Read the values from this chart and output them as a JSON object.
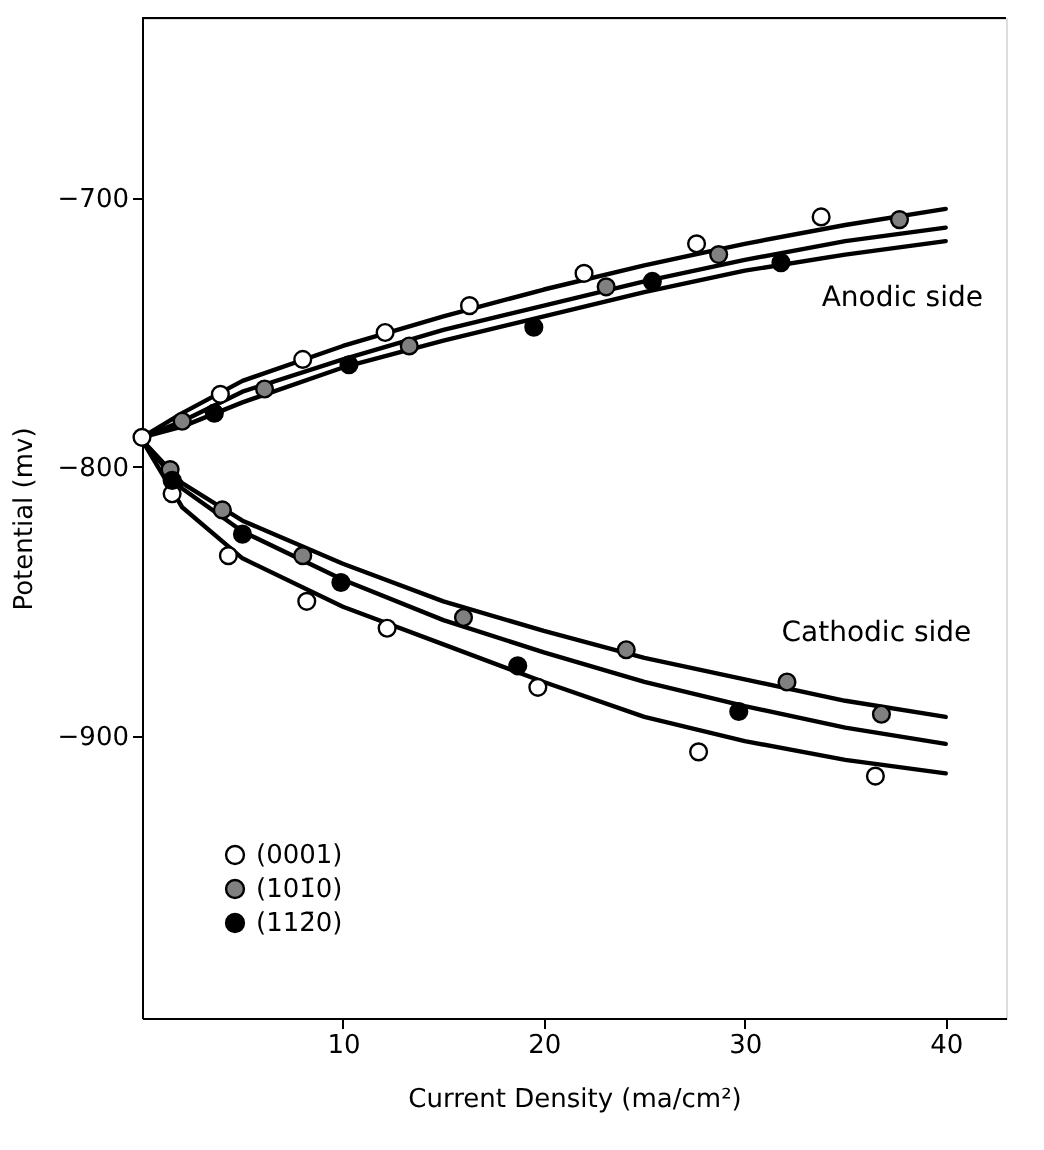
{
  "chart_data": {
    "type": "scatter",
    "xlabel": "Current Density (ma/cm²)",
    "ylabel": "Potential (mv)",
    "xlim": [
      0,
      43
    ],
    "ylim": [
      -1005,
      -633
    ],
    "xticks": [
      10,
      20,
      30,
      40
    ],
    "yticks": [
      -700,
      -800,
      -900
    ],
    "grid": false,
    "legend": "bottom left",
    "line_style": "solid",
    "annotations": [
      "Anodic side",
      "Cathodic side"
    ],
    "series": [
      {
        "name": "(0001)",
        "color": "#ffffff",
        "marker": "circle",
        "x": [
          0,
          3.9,
          8.0,
          12.1,
          16.3,
          22.0,
          27.6,
          33.8,
          1.5,
          4.3,
          8.2,
          12.2,
          19.7,
          27.7,
          36.5
        ],
        "values": [
          -789,
          -773,
          -760,
          -750,
          -740,
          -728,
          -717,
          -707,
          -810,
          -833,
          -850,
          -860,
          -882,
          -906,
          -915
        ]
      },
      {
        "name": "(101̄0)",
        "color": "#808080",
        "marker": "circle",
        "x": [
          2.0,
          6.1,
          13.3,
          23.1,
          28.7,
          37.7,
          1.4,
          4.0,
          8.0,
          16.0,
          24.1,
          32.1,
          36.8
        ],
        "values": [
          -783,
          -771,
          -755,
          -733,
          -721,
          -708,
          -801,
          -816,
          -833,
          -856,
          -868,
          -880,
          -892
        ]
      },
      {
        "name": "(112̄0)",
        "color": "#000000",
        "marker": "circle",
        "x": [
          3.6,
          10.3,
          19.5,
          25.4,
          31.8,
          1.5,
          5.0,
          9.9,
          18.7,
          29.7
        ],
        "values": [
          -780,
          -762,
          -748,
          -731,
          -724,
          -805,
          -825,
          -843,
          -874,
          -891
        ]
      },
      {
        "type": "line",
        "color": "#000000",
        "x": [
          0,
          2,
          5,
          10,
          15,
          20,
          25,
          30,
          35,
          40
        ],
        "values": [
          -789,
          -780,
          -768,
          -755,
          -744,
          -734,
          -725,
          -717,
          -710,
          -704
        ]
      },
      {
        "type": "line",
        "color": "#000000",
        "x": [
          0,
          2,
          5,
          10,
          15,
          20,
          25,
          30,
          35,
          40
        ],
        "values": [
          -789,
          -783,
          -772,
          -760,
          -749,
          -740,
          -731,
          -723,
          -716,
          -711
        ]
      },
      {
        "type": "line",
        "color": "#000000",
        "x": [
          0,
          2,
          5,
          10,
          15,
          20,
          25,
          30,
          35,
          40
        ],
        "values": [
          -789,
          -785,
          -776,
          -763,
          -753,
          -744,
          -735,
          -727,
          -721,
          -716
        ]
      },
      {
        "type": "line",
        "color": "#000000",
        "x": [
          0,
          2,
          5,
          10,
          15,
          20,
          25,
          30,
          35,
          40
        ],
        "values": [
          -790,
          -806,
          -820,
          -836,
          -850,
          -861,
          -871,
          -879,
          -887,
          -893
        ]
      },
      {
        "type": "line",
        "color": "#000000",
        "x": [
          0,
          2,
          5,
          10,
          15,
          20,
          25,
          30,
          35,
          40
        ],
        "values": [
          -790,
          -808,
          -824,
          -842,
          -857,
          -869,
          -880,
          -889,
          -897,
          -903
        ]
      },
      {
        "type": "line",
        "color": "#000000",
        "x": [
          0,
          2,
          5,
          10,
          15,
          20,
          25,
          30,
          35,
          40
        ],
        "values": [
          -790,
          -815,
          -834,
          -852,
          -866,
          -880,
          -893,
          -902,
          -909,
          -914
        ]
      }
    ]
  }
}
